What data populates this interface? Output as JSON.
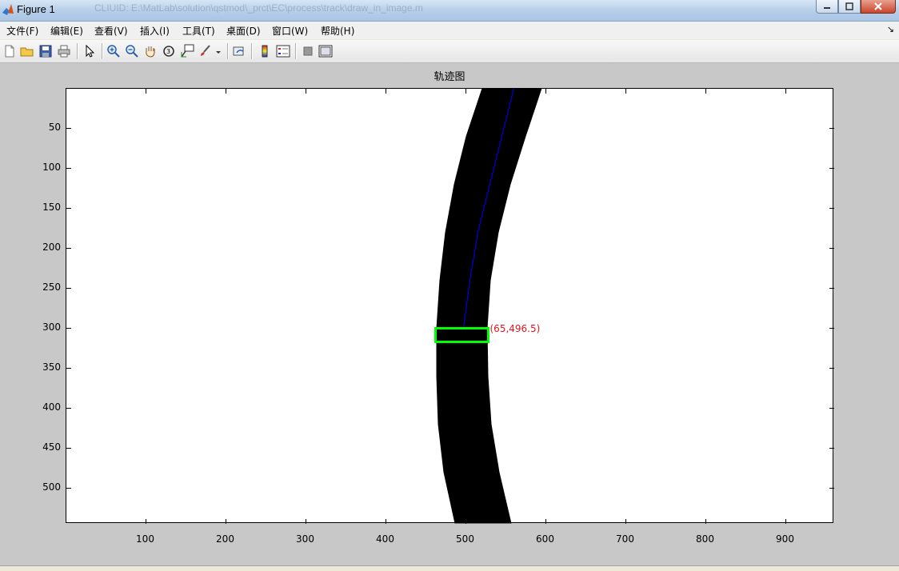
{
  "window": {
    "title": "Figure 1",
    "path_text": "CLIUID: E:\\MatLab\\solution\\qstmod\\_prct\\EC\\process\\track\\draw_in_image.m"
  },
  "menu": [
    "文件(F)",
    "编辑(E)",
    "查看(V)",
    "插入(I)",
    "工具(T)",
    "桌面(D)",
    "窗口(W)",
    "帮助(H)"
  ],
  "toolbar_icons": [
    "new-figure-icon",
    "open-file-icon",
    "save-icon",
    "print-icon",
    "edit-plot-icon",
    "zoom-in-icon",
    "zoom-out-icon",
    "pan-icon",
    "rotate-3d-icon",
    "data-cursor-icon",
    "brush-icon",
    "link-plot-icon",
    "colorbar-icon",
    "legend-icon",
    "hide-plot-tools-icon",
    "show-plot-tools-icon"
  ],
  "colors": {
    "track": "#000000",
    "center_line": "#0000ff",
    "box": "#00ff00",
    "annotation": "#e8141e",
    "figure_bg": "#c8c8c8"
  },
  "chart_data": {
    "type": "image",
    "title": "轨迹图",
    "xlim": [
      0.5,
      960.5
    ],
    "ylim": [
      0.5,
      544.5
    ],
    "y_reversed": true,
    "xticks": [
      100,
      200,
      300,
      400,
      500,
      600,
      700,
      800,
      900
    ],
    "yticks": [
      50,
      100,
      150,
      200,
      250,
      300,
      350,
      400,
      450,
      500
    ],
    "track_left_edge": [
      [
        520,
        0
      ],
      [
        500,
        60
      ],
      [
        485,
        120
      ],
      [
        474,
        180
      ],
      [
        467,
        240
      ],
      [
        463,
        300
      ],
      [
        463,
        360
      ],
      [
        465,
        420
      ],
      [
        472,
        480
      ],
      [
        486,
        544
      ]
    ],
    "track_right_edge": [
      [
        595,
        0
      ],
      [
        575,
        60
      ],
      [
        556,
        120
      ],
      [
        541,
        180
      ],
      [
        531,
        240
      ],
      [
        527,
        300
      ],
      [
        528,
        360
      ],
      [
        532,
        420
      ],
      [
        542,
        480
      ],
      [
        557,
        544
      ]
    ],
    "center_line": [
      [
        560,
        0
      ],
      [
        545,
        60
      ],
      [
        530,
        120
      ],
      [
        515,
        180
      ],
      [
        505,
        240
      ],
      [
        497,
        300
      ]
    ],
    "box": {
      "x": [
        462,
        528
      ],
      "y": [
        300,
        317
      ]
    },
    "annotation": "(65,496.5)"
  }
}
